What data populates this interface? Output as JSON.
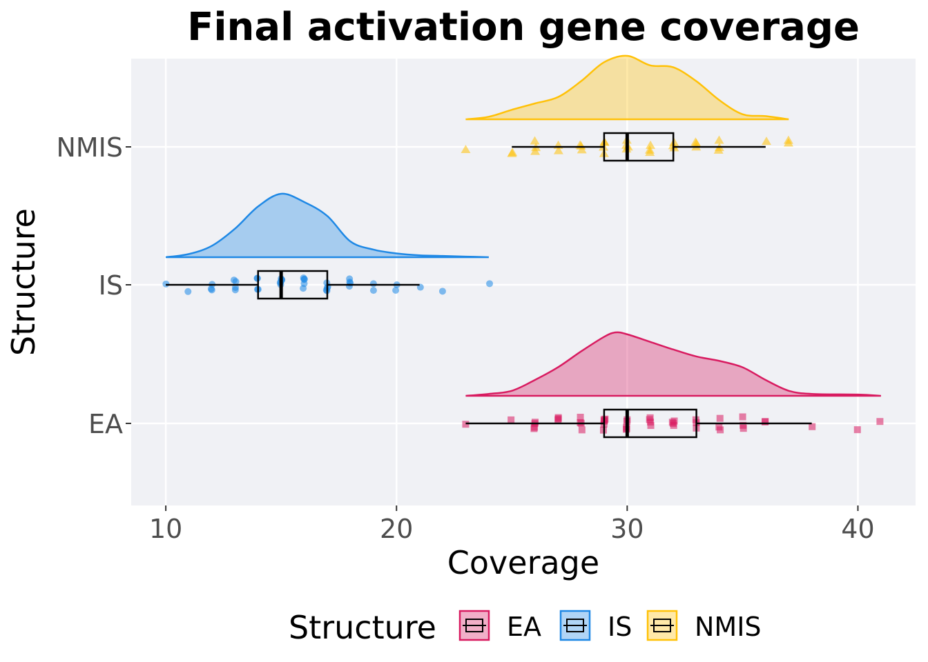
{
  "chart_data": {
    "type": "raincloud",
    "title": "Final activation gene coverage",
    "xlabel": "Coverage",
    "ylabel": "Structure",
    "xlim": [
      8.5,
      42.5
    ],
    "x_ticks": [
      10,
      20,
      30,
      40
    ],
    "categories": [
      "EA",
      "IS",
      "NMIS"
    ],
    "grid": true,
    "legend": {
      "title": "Structure",
      "position": "bottom",
      "entries": [
        "EA",
        "IS",
        "NMIS"
      ]
    },
    "series": [
      {
        "name": "EA",
        "color": "#d81b60",
        "marker": "square",
        "box": {
          "min": 23,
          "q1": 29,
          "median": 30,
          "q3": 33,
          "max": 38
        },
        "density": [
          [
            23,
            0.0
          ],
          [
            24,
            0.03
          ],
          [
            25,
            0.08
          ],
          [
            26,
            0.25
          ],
          [
            27,
            0.45
          ],
          [
            28,
            0.7
          ],
          [
            29,
            0.93
          ],
          [
            29.5,
            1.0
          ],
          [
            30,
            0.97
          ],
          [
            31,
            0.85
          ],
          [
            32,
            0.73
          ],
          [
            33,
            0.62
          ],
          [
            34,
            0.55
          ],
          [
            35,
            0.45
          ],
          [
            36,
            0.25
          ],
          [
            37,
            0.08
          ],
          [
            38,
            0.03
          ],
          [
            40,
            0.02
          ],
          [
            41,
            0.0
          ]
        ],
        "points": [
          23,
          25,
          26,
          26,
          26,
          26,
          27,
          27,
          27,
          28,
          28,
          28,
          28,
          29,
          29,
          29,
          29,
          29,
          29,
          30,
          30,
          30,
          30,
          30,
          31,
          31,
          31,
          31,
          32,
          32,
          32,
          32,
          33,
          33,
          33,
          34,
          34,
          34,
          35,
          35,
          35,
          36,
          36,
          38,
          40,
          41
        ]
      },
      {
        "name": "IS",
        "color": "#1e88e5",
        "marker": "circle",
        "box": {
          "min": 10,
          "q1": 14,
          "median": 15,
          "q3": 17,
          "max": 21
        },
        "density": [
          [
            10,
            0.0
          ],
          [
            11,
            0.05
          ],
          [
            12,
            0.18
          ],
          [
            13,
            0.45
          ],
          [
            14,
            0.8
          ],
          [
            15,
            1.0
          ],
          [
            16,
            0.87
          ],
          [
            17,
            0.65
          ],
          [
            18,
            0.25
          ],
          [
            19,
            0.12
          ],
          [
            20,
            0.06
          ],
          [
            21,
            0.03
          ],
          [
            22,
            0.02
          ],
          [
            23,
            0.01
          ],
          [
            24,
            0.0
          ]
        ],
        "points": [
          10,
          11,
          12,
          12,
          12,
          13,
          13,
          13,
          13,
          14,
          14,
          14,
          14,
          15,
          15,
          15,
          15,
          15,
          15,
          16,
          16,
          16,
          16,
          16,
          17,
          17,
          17,
          17,
          17,
          18,
          18,
          18,
          18,
          19,
          19,
          20,
          20,
          21,
          22,
          24
        ]
      },
      {
        "name": "NMIS",
        "color": "#ffc107",
        "marker": "triangle",
        "box": {
          "min": 25,
          "q1": 29,
          "median": 30,
          "q3": 32,
          "max": 36
        },
        "density": [
          [
            23,
            0.0
          ],
          [
            24,
            0.04
          ],
          [
            25,
            0.15
          ],
          [
            26,
            0.25
          ],
          [
            27,
            0.35
          ],
          [
            28,
            0.6
          ],
          [
            29,
            0.9
          ],
          [
            30,
            1.0
          ],
          [
            31,
            0.85
          ],
          [
            32,
            0.82
          ],
          [
            33,
            0.6
          ],
          [
            34,
            0.3
          ],
          [
            35,
            0.08
          ],
          [
            36,
            0.05
          ],
          [
            37,
            0.0
          ]
        ],
        "points": [
          23,
          25,
          25,
          26,
          26,
          26,
          27,
          27,
          28,
          28,
          28,
          29,
          29,
          29,
          29,
          30,
          30,
          30,
          30,
          31,
          31,
          31,
          32,
          32,
          32,
          33,
          33,
          33,
          34,
          34,
          34,
          36,
          37,
          37
        ]
      }
    ]
  }
}
